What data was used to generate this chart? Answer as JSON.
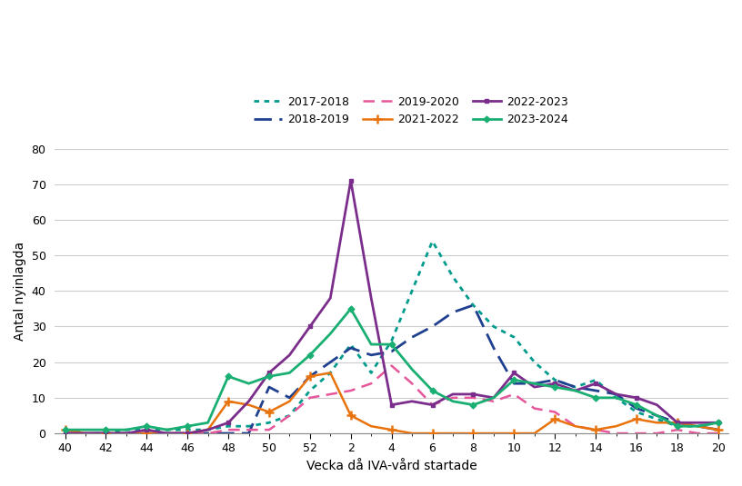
{
  "weeks": [
    40,
    41,
    42,
    43,
    44,
    45,
    46,
    47,
    48,
    49,
    50,
    51,
    52,
    1,
    2,
    3,
    4,
    5,
    6,
    7,
    8,
    9,
    10,
    11,
    12,
    13,
    14,
    15,
    16,
    17,
    18,
    19,
    20
  ],
  "tick_weeks": [
    40,
    42,
    44,
    46,
    48,
    50,
    52,
    2,
    4,
    6,
    8,
    10,
    12,
    14,
    16,
    18,
    20
  ],
  "series": [
    {
      "label": "2017-2018",
      "color": "#009B8D",
      "linestyle": "dotted",
      "linewidth": 2.0,
      "marker": null,
      "dashes": [
        2,
        2
      ],
      "values": [
        1,
        0,
        0,
        1,
        1,
        1,
        1,
        1,
        2,
        2,
        3,
        5,
        12,
        17,
        25,
        17,
        26,
        40,
        54,
        44,
        36,
        30,
        27,
        20,
        15,
        13,
        15,
        10,
        6,
        4,
        2,
        2,
        3
      ]
    },
    {
      "label": "2018-2019",
      "color": "#1F3F8F",
      "linestyle": "dashed",
      "linewidth": 2.0,
      "marker": null,
      "dashes": [
        7,
        3
      ],
      "values": [
        0,
        0,
        0,
        0,
        0,
        0,
        0,
        0,
        0,
        0,
        13,
        10,
        16,
        20,
        24,
        22,
        23,
        27,
        30,
        34,
        36,
        24,
        14,
        14,
        15,
        13,
        12,
        11,
        7,
        5,
        3,
        2,
        1
      ]
    },
    {
      "label": "2019-2020",
      "color": "#E5579A",
      "linestyle": "dashed",
      "linewidth": 1.8,
      "marker": null,
      "dashes": [
        5,
        3
      ],
      "values": [
        0,
        0,
        0,
        0,
        0,
        0,
        0,
        0,
        1,
        1,
        1,
        5,
        10,
        11,
        12,
        14,
        19,
        14,
        8,
        10,
        10,
        9,
        11,
        7,
        6,
        2,
        1,
        0,
        0,
        0,
        1,
        0,
        0
      ]
    },
    {
      "label": "2021-2022",
      "color": "#E8720C",
      "linestyle": "solid",
      "linewidth": 1.8,
      "marker": "+",
      "markersize": 7,
      "markevery": 2,
      "values": [
        1,
        0,
        0,
        0,
        0,
        0,
        0,
        1,
        9,
        8,
        6,
        9,
        16,
        17,
        5,
        2,
        1,
        0,
        0,
        0,
        0,
        0,
        0,
        0,
        4,
        2,
        1,
        2,
        4,
        3,
        3,
        2,
        1
      ]
    },
    {
      "label": "2022-2023",
      "color": "#7B2D8B",
      "linestyle": "solid",
      "linewidth": 2.0,
      "marker": "s",
      "markersize": 3.5,
      "markevery": 2,
      "values": [
        0,
        0,
        0,
        0,
        1,
        0,
        0,
        1,
        3,
        9,
        17,
        22,
        30,
        38,
        71,
        38,
        8,
        9,
        8,
        11,
        11,
        10,
        17,
        13,
        14,
        12,
        14,
        11,
        10,
        8,
        3,
        3,
        3
      ]
    },
    {
      "label": "2023-2024",
      "color": "#1AAF72",
      "linestyle": "solid",
      "linewidth": 2.0,
      "marker": "D",
      "markersize": 3.5,
      "markevery": 2,
      "values": [
        1,
        1,
        1,
        1,
        2,
        1,
        2,
        3,
        16,
        14,
        16,
        17,
        22,
        28,
        35,
        25,
        25,
        18,
        12,
        9,
        8,
        10,
        15,
        14,
        13,
        12,
        10,
        10,
        8,
        5,
        2,
        2,
        3
      ]
    }
  ],
  "ylabel": "Antal nyinlagda",
  "xlabel": "Vecka då IVA-vård startade",
  "ylim": [
    0,
    80
  ],
  "yticks": [
    0,
    10,
    20,
    30,
    40,
    50,
    60,
    70,
    80
  ],
  "grid_color": "#cccccc",
  "tick_fontsize": 9,
  "label_fontsize": 10,
  "legend_fontsize": 9
}
